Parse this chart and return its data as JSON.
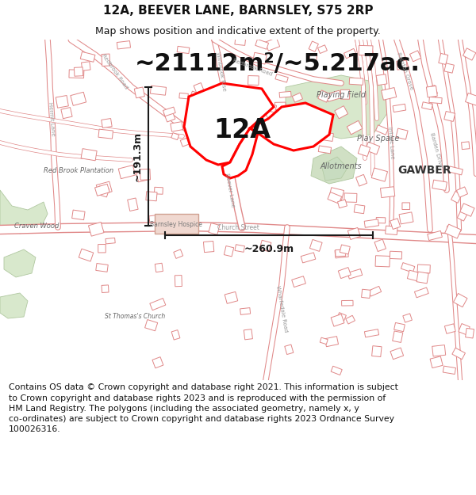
{
  "title_line1": "12A, BEEVER LANE, BARNSLEY, S75 2RP",
  "title_line2": "Map shows position and indicative extent of the property.",
  "area_label": "~21112m²/~5.217ac.",
  "label_12A": "12A",
  "height_label": "~191.3m",
  "width_label": "~260.9m",
  "footnote": "Contains OS data © Crown copyright and database right 2021. This information is subject\nto Crown copyright and database rights 2023 and is reproduced with the permission of\nHM Land Registry. The polygons (including the associated geometry, namely x, y\nco-ordinates) are subject to Crown copyright and database rights 2023 Ordnance Survey\n100026316.",
  "map_bg": "#f5f2ee",
  "road_line_color": "#e08888",
  "road_fill_color": "#ffffff",
  "green_color": "#d8e8cc",
  "green_edge": "#b0c8a0",
  "green_mid": "#d0e0c4",
  "hospice_color": "#f0d8d0",
  "hospice_edge": "#d0a090",
  "property_color": "#ff0000",
  "dim_color": "#1a1a1a",
  "text_map_color": "#666666",
  "label_color": "#333333",
  "title_color": "#111111",
  "gawber_color": "#333333",
  "footnote_color": "#111111",
  "title_fontsize": 11,
  "subtitle_fontsize": 9,
  "area_fontsize": 22,
  "label12A_fontsize": 24,
  "dim_fontsize": 9,
  "map_label_fontsize": 7,
  "gawber_fontsize": 10,
  "footnote_fontsize": 7.8
}
